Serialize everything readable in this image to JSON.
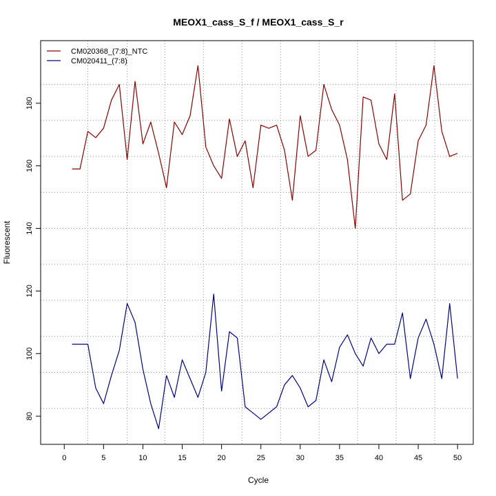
{
  "chart_data": {
    "type": "line",
    "title": "MEOX1_cass_S_f / MEOX1_cass_S_r",
    "xlabel": "Cycle",
    "ylabel": "Fluorescent",
    "xlim": [
      -3,
      52
    ],
    "ylim": [
      71,
      200
    ],
    "xticks": [
      0,
      5,
      10,
      15,
      20,
      25,
      30,
      35,
      40,
      45,
      50
    ],
    "yticks": [
      80,
      100,
      120,
      140,
      160,
      180
    ],
    "grid_x": [
      3,
      8,
      12.8,
      17.7,
      22.6,
      27.5,
      32.4,
      37.3,
      42.2,
      47.1
    ],
    "grid_y": [
      82.5,
      94,
      105.5,
      117,
      128.5,
      140,
      151.5,
      163,
      174.5,
      186
    ],
    "legend": {
      "position": "top-left"
    },
    "x": [
      1,
      2,
      3,
      4,
      5,
      6,
      7,
      8,
      9,
      10,
      11,
      12,
      13,
      14,
      15,
      16,
      17,
      18,
      19,
      20,
      21,
      22,
      23,
      24,
      25,
      26,
      27,
      28,
      29,
      30,
      31,
      32,
      33,
      34,
      35,
      36,
      37,
      38,
      39,
      40,
      41,
      42,
      43,
      44,
      45,
      46,
      47,
      48,
      49,
      50
    ],
    "series": [
      {
        "name": "CM020368_(7:8)_NTC",
        "color": "#8b0000",
        "values": [
          159,
          159,
          171,
          169,
          172,
          181,
          186,
          162,
          187,
          167,
          174,
          164,
          153,
          174,
          170,
          176,
          192,
          166,
          160,
          156,
          175,
          163,
          168,
          153,
          173,
          172,
          173,
          165,
          149,
          176,
          163,
          165,
          186,
          178,
          173,
          162,
          140,
          182,
          181,
          167,
          162,
          183,
          149,
          151,
          168,
          173,
          192,
          171,
          163,
          164
        ]
      },
      {
        "name": "CM020411_(7:8)",
        "color": "#00008b",
        "values": [
          103,
          103,
          103,
          89,
          84,
          93,
          101,
          116,
          110,
          95,
          84,
          76,
          93,
          86,
          98,
          92,
          86,
          94,
          119,
          88,
          107,
          105,
          83,
          81,
          79,
          81,
          83,
          90,
          93,
          89,
          83,
          85,
          98,
          91,
          102,
          106,
          100,
          96,
          105,
          100,
          103,
          103,
          113,
          92,
          105,
          111,
          103,
          92,
          116,
          92
        ]
      }
    ]
  }
}
